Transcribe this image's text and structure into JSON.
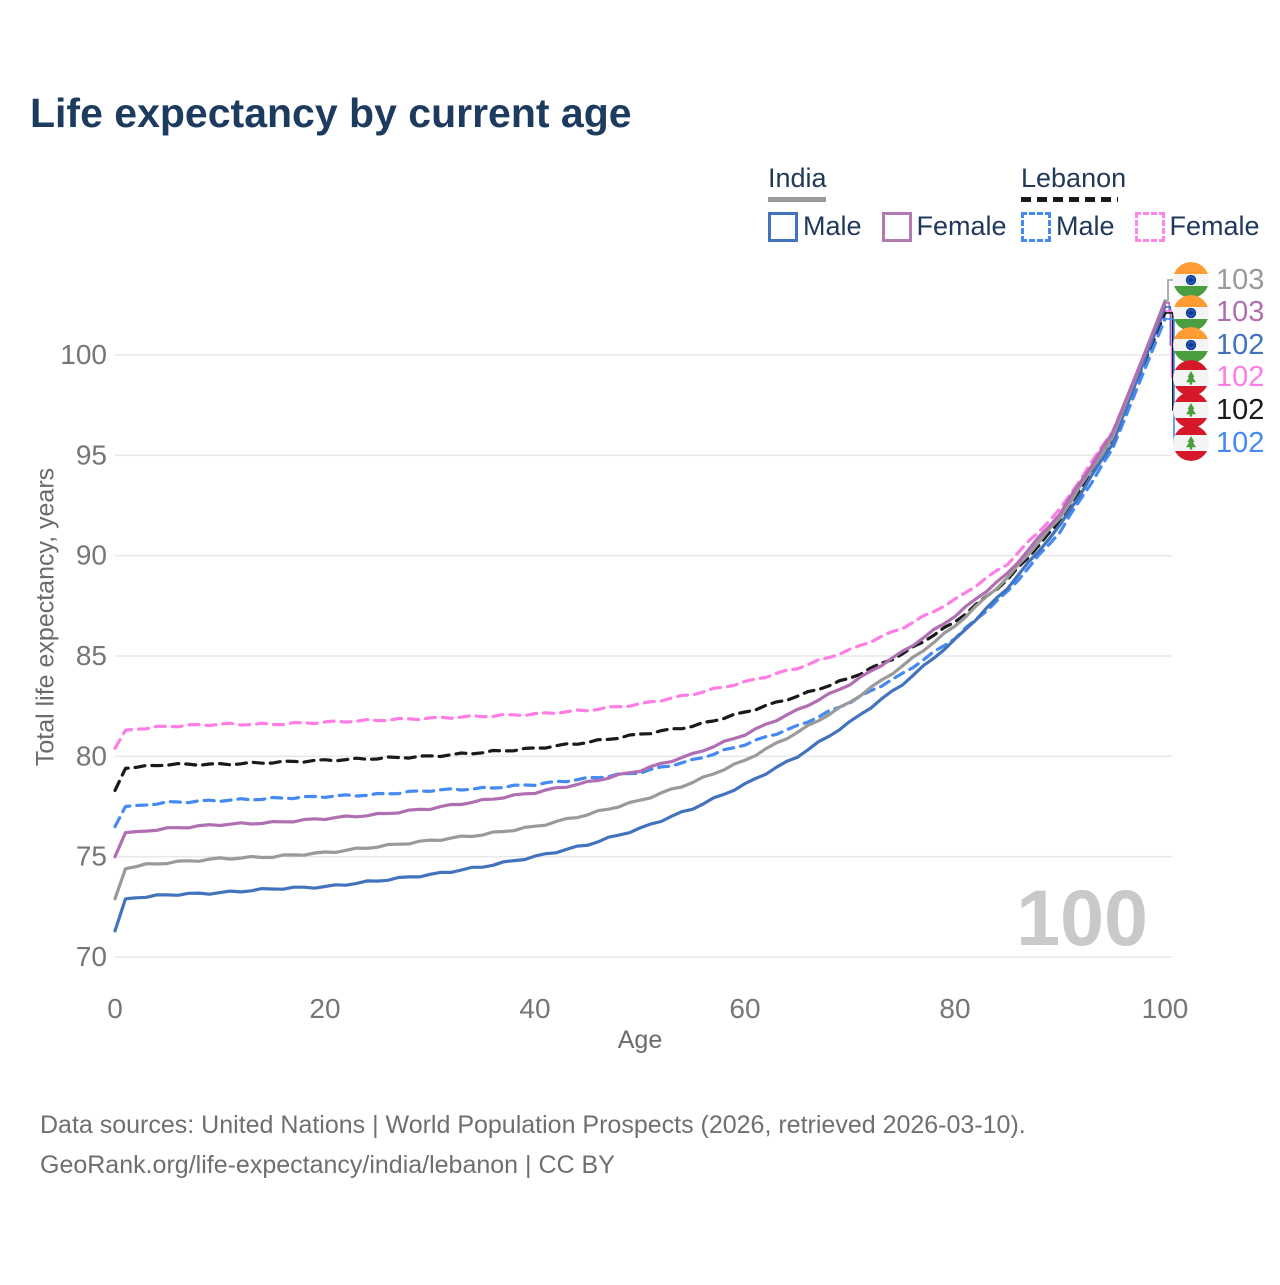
{
  "title": "Life expectancy by current age",
  "legend": {
    "groups": [
      {
        "name": "India",
        "line_style": "solid",
        "underline_color": "#9a9a9a",
        "items": [
          {
            "label": "Male",
            "color": "#4473bd"
          },
          {
            "label": "Female",
            "color": "#b279b2"
          }
        ]
      },
      {
        "name": "Lebanon",
        "line_style": "dashed",
        "underline_color": "#1a1a1a",
        "items": [
          {
            "label": "Male",
            "color": "#4589f2"
          },
          {
            "label": "Female",
            "color": "#ff85e6"
          }
        ]
      }
    ]
  },
  "chart_data": {
    "type": "line",
    "title": "Life expectancy by current age",
    "xlabel": "Age",
    "ylabel": "Total life expectancy, years",
    "xlim": [
      0,
      100
    ],
    "ylim": [
      70,
      100
    ],
    "xticks": [
      0,
      20,
      40,
      60,
      80,
      100
    ],
    "yticks": [
      70,
      75,
      80,
      85,
      90,
      95,
      100
    ],
    "grid": true,
    "legend_position": "top-right",
    "x": [
      0,
      1,
      3,
      5,
      10,
      15,
      20,
      25,
      30,
      35,
      40,
      45,
      50,
      55,
      60,
      65,
      70,
      75,
      80,
      85,
      90,
      95,
      100
    ],
    "series": [
      {
        "name": "Lebanon Female",
        "country": "lebanon",
        "sex": "female",
        "color": "#ff7de4",
        "dash": true,
        "values": [
          80.4,
          81.3,
          81.4,
          81.5,
          81.6,
          81.6,
          81.7,
          81.8,
          81.9,
          82.0,
          82.1,
          82.3,
          82.6,
          83.1,
          83.7,
          84.4,
          85.3,
          86.4,
          87.8,
          89.6,
          92.3,
          96.2,
          102.2
        ]
      },
      {
        "name": "Lebanon Total",
        "country": "lebanon",
        "sex": "total",
        "color": "#1a1a1a",
        "dash": true,
        "values": [
          78.3,
          79.4,
          79.5,
          79.6,
          79.6,
          79.7,
          79.8,
          79.9,
          80.0,
          80.2,
          80.4,
          80.7,
          81.1,
          81.5,
          82.2,
          83.0,
          83.9,
          85.1,
          86.7,
          88.8,
          91.7,
          95.8,
          102.1
        ]
      },
      {
        "name": "Lebanon Male",
        "country": "lebanon",
        "sex": "male",
        "color": "#4589f2",
        "dash": true,
        "values": [
          76.5,
          77.5,
          77.6,
          77.7,
          77.8,
          77.9,
          78.0,
          78.1,
          78.3,
          78.4,
          78.6,
          78.9,
          79.2,
          79.8,
          80.6,
          81.5,
          82.7,
          84.1,
          85.9,
          88.2,
          91.2,
          95.3,
          101.8
        ]
      },
      {
        "name": "India Male",
        "country": "india",
        "sex": "male",
        "color": "#4473bd",
        "dash": false,
        "values": [
          71.3,
          72.9,
          73.0,
          73.1,
          73.2,
          73.4,
          73.5,
          73.8,
          74.1,
          74.5,
          75.0,
          75.6,
          76.4,
          77.4,
          78.6,
          80.0,
          81.7,
          83.6,
          85.8,
          88.4,
          91.5,
          95.6,
          102.4
        ]
      },
      {
        "name": "India Total",
        "country": "india",
        "sex": "total",
        "color": "#9a9a9a",
        "dash": false,
        "values": [
          72.9,
          74.4,
          74.6,
          74.7,
          74.9,
          75.0,
          75.2,
          75.5,
          75.8,
          76.1,
          76.5,
          77.1,
          77.8,
          78.7,
          79.8,
          81.2,
          82.7,
          84.5,
          86.5,
          88.9,
          91.9,
          95.9,
          102.7
        ]
      },
      {
        "name": "India Female",
        "country": "india",
        "sex": "female",
        "color": "#b06fb2",
        "dash": false,
        "values": [
          75.0,
          76.2,
          76.3,
          76.4,
          76.6,
          76.7,
          76.9,
          77.1,
          77.4,
          77.8,
          78.2,
          78.7,
          79.3,
          80.1,
          81.1,
          82.3,
          83.6,
          85.2,
          87.0,
          89.1,
          92.1,
          96.1,
          102.6
        ]
      }
    ]
  },
  "right_labels": [
    {
      "flag": "india",
      "series": "India Total",
      "value": "103",
      "color": "#9a9a9a"
    },
    {
      "flag": "india",
      "series": "India Female",
      "value": "103",
      "color": "#b06fb2"
    },
    {
      "flag": "india",
      "series": "India Male",
      "value": "102",
      "color": "#4473bd"
    },
    {
      "flag": "lebanon",
      "series": "Lebanon Female",
      "value": "102",
      "color": "#ff7de4"
    },
    {
      "flag": "lebanon",
      "series": "Lebanon Total",
      "value": "102",
      "color": "#1a1a1a"
    },
    {
      "flag": "lebanon",
      "series": "Lebanon Male",
      "value": "102",
      "color": "#4589f2"
    }
  ],
  "age_watermark": "100",
  "footer": {
    "line1": "Data sources: United Nations | World Population Prospects (2026, retrieved 2026-03-10).",
    "line2": "GeoRank.org/life-expectancy/india/lebanon | CC BY"
  }
}
